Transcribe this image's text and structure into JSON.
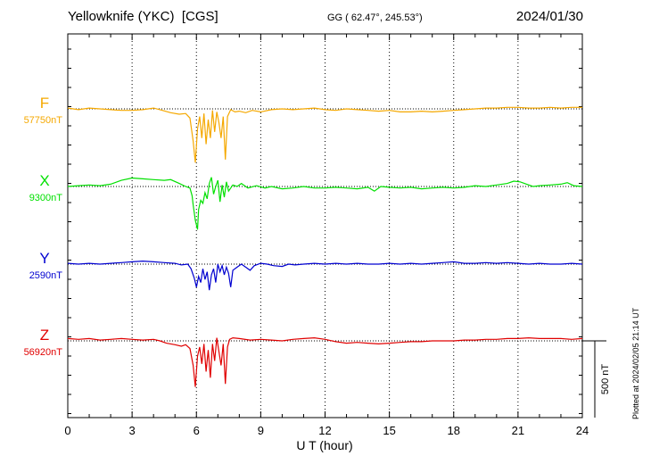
{
  "header": {
    "station": "Yellowknife (YKC)  [CGS]",
    "coords": "GG ( 62.47°, 245.53°)",
    "date": "2024/01/30"
  },
  "side_note": "Plotted at 2024/02/05 21:14 UT",
  "scale_label": "500 nT",
  "colors": {
    "F": "#f5a800",
    "X": "#00e000",
    "Y": "#0000d0",
    "Z": "#e00000"
  },
  "chart_data": {
    "type": "line",
    "xlabel": "U T (hour)",
    "xlim": [
      0,
      24
    ],
    "x_ticks": [
      "0",
      "3",
      "6",
      "9",
      "12",
      "15",
      "18",
      "21",
      "24"
    ],
    "scale_bar_nT": 500,
    "series": [
      {
        "name": "F",
        "baseline_label": "57750nT",
        "baseline": 57750,
        "points": [
          [
            0,
            57755
          ],
          [
            0.5,
            57745
          ],
          [
            1,
            57755
          ],
          [
            1.5,
            57750
          ],
          [
            2,
            57745
          ],
          [
            2.5,
            57740
          ],
          [
            3,
            57740
          ],
          [
            3.5,
            57745
          ],
          [
            4,
            57755
          ],
          [
            4.3,
            57745
          ],
          [
            4.8,
            57725
          ],
          [
            5.2,
            57715
          ],
          [
            5.5,
            57720
          ],
          [
            5.7,
            57690
          ],
          [
            5.85,
            57540
          ],
          [
            5.95,
            57400
          ],
          [
            6.05,
            57620
          ],
          [
            6.15,
            57700
          ],
          [
            6.25,
            57560
          ],
          [
            6.35,
            57720
          ],
          [
            6.45,
            57520
          ],
          [
            6.55,
            57680
          ],
          [
            6.65,
            57560
          ],
          [
            6.75,
            57740
          ],
          [
            6.85,
            57600
          ],
          [
            6.95,
            57730
          ],
          [
            7.05,
            57660
          ],
          [
            7.15,
            57560
          ],
          [
            7.25,
            57700
          ],
          [
            7.35,
            57420
          ],
          [
            7.45,
            57700
          ],
          [
            7.6,
            57745
          ],
          [
            7.8,
            57730
          ],
          [
            8.0,
            57735
          ],
          [
            8.3,
            57725
          ],
          [
            8.6,
            57740
          ],
          [
            9,
            57730
          ],
          [
            9.5,
            57745
          ],
          [
            10,
            57750
          ],
          [
            10.5,
            57745
          ],
          [
            11,
            57750
          ],
          [
            11.5,
            57755
          ],
          [
            12,
            57745
          ],
          [
            12.5,
            57740
          ],
          [
            13,
            57750
          ],
          [
            13.5,
            57745
          ],
          [
            14,
            57740
          ],
          [
            14.5,
            57735
          ],
          [
            15,
            57740
          ],
          [
            15.5,
            57730
          ],
          [
            16,
            57730
          ],
          [
            16.5,
            57735
          ],
          [
            17,
            57730
          ],
          [
            17.5,
            57735
          ],
          [
            18,
            57740
          ],
          [
            18.5,
            57745
          ],
          [
            19,
            57750
          ],
          [
            19.5,
            57755
          ],
          [
            20,
            57755
          ],
          [
            20.5,
            57760
          ],
          [
            21,
            57760
          ],
          [
            21.5,
            57755
          ],
          [
            22,
            57755
          ],
          [
            22.5,
            57760
          ],
          [
            23,
            57755
          ],
          [
            23.5,
            57760
          ],
          [
            24,
            57760
          ]
        ]
      },
      {
        "name": "X",
        "baseline_label": "9300nT",
        "baseline": 9300,
        "points": [
          [
            0,
            9300
          ],
          [
            0.5,
            9305
          ],
          [
            1,
            9310
          ],
          [
            1.5,
            9305
          ],
          [
            2,
            9315
          ],
          [
            2.5,
            9340
          ],
          [
            3,
            9355
          ],
          [
            3.5,
            9350
          ],
          [
            4,
            9345
          ],
          [
            4.5,
            9340
          ],
          [
            4.8,
            9345
          ],
          [
            5.2,
            9320
          ],
          [
            5.5,
            9300
          ],
          [
            5.7,
            9290
          ],
          [
            5.8,
            9240
          ],
          [
            5.85,
            9180
          ],
          [
            5.95,
            9080
          ],
          [
            6.05,
            9020
          ],
          [
            6.1,
            9150
          ],
          [
            6.2,
            9210
          ],
          [
            6.3,
            9190
          ],
          [
            6.4,
            9260
          ],
          [
            6.5,
            9220
          ],
          [
            6.6,
            9320
          ],
          [
            6.7,
            9360
          ],
          [
            6.8,
            9250
          ],
          [
            6.9,
            9300
          ],
          [
            7.0,
            9340
          ],
          [
            7.1,
            9200
          ],
          [
            7.2,
            9310
          ],
          [
            7.3,
            9230
          ],
          [
            7.4,
            9330
          ],
          [
            7.5,
            9270
          ],
          [
            7.7,
            9310
          ],
          [
            7.9,
            9300
          ],
          [
            8.1,
            9320
          ],
          [
            8.4,
            9290
          ],
          [
            8.8,
            9305
          ],
          [
            9.2,
            9290
          ],
          [
            9.5,
            9300
          ],
          [
            10,
            9285
          ],
          [
            10.5,
            9290
          ],
          [
            11,
            9300
          ],
          [
            11.5,
            9290
          ],
          [
            12,
            9290
          ],
          [
            12.5,
            9295
          ],
          [
            13,
            9290
          ],
          [
            13.5,
            9285
          ],
          [
            14,
            9295
          ],
          [
            14.3,
            9270
          ],
          [
            14.6,
            9300
          ],
          [
            15,
            9295
          ],
          [
            15.5,
            9290
          ],
          [
            16,
            9295
          ],
          [
            16.5,
            9285
          ],
          [
            17,
            9290
          ],
          [
            17.5,
            9295
          ],
          [
            18,
            9290
          ],
          [
            18.5,
            9295
          ],
          [
            19,
            9305
          ],
          [
            19.5,
            9300
          ],
          [
            20,
            9310
          ],
          [
            20.5,
            9320
          ],
          [
            20.8,
            9335
          ],
          [
            21.1,
            9330
          ],
          [
            21.4,
            9315
          ],
          [
            21.7,
            9300
          ],
          [
            22,
            9305
          ],
          [
            22.5,
            9310
          ],
          [
            23,
            9315
          ],
          [
            23.3,
            9325
          ],
          [
            23.6,
            9305
          ],
          [
            24,
            9300
          ]
        ]
      },
      {
        "name": "Y",
        "baseline_label": "2590nT",
        "baseline": 2590,
        "points": [
          [
            0,
            2595
          ],
          [
            0.5,
            2590
          ],
          [
            1,
            2595
          ],
          [
            1.5,
            2590
          ],
          [
            2,
            2595
          ],
          [
            2.5,
            2600
          ],
          [
            3,
            2605
          ],
          [
            3.5,
            2610
          ],
          [
            4,
            2605
          ],
          [
            4.5,
            2600
          ],
          [
            5,
            2595
          ],
          [
            5.3,
            2585
          ],
          [
            5.6,
            2590
          ],
          [
            5.75,
            2560
          ],
          [
            5.9,
            2500
          ],
          [
            6.0,
            2440
          ],
          [
            6.1,
            2510
          ],
          [
            6.2,
            2470
          ],
          [
            6.3,
            2560
          ],
          [
            6.4,
            2490
          ],
          [
            6.5,
            2540
          ],
          [
            6.6,
            2420
          ],
          [
            6.7,
            2520
          ],
          [
            6.8,
            2560
          ],
          [
            6.9,
            2470
          ],
          [
            7.0,
            2590
          ],
          [
            7.1,
            2540
          ],
          [
            7.2,
            2580
          ],
          [
            7.3,
            2520
          ],
          [
            7.4,
            2570
          ],
          [
            7.5,
            2530
          ],
          [
            7.6,
            2440
          ],
          [
            7.7,
            2550
          ],
          [
            7.9,
            2570
          ],
          [
            8.1,
            2590
          ],
          [
            8.3,
            2570
          ],
          [
            8.5,
            2550
          ],
          [
            8.7,
            2580
          ],
          [
            9,
            2595
          ],
          [
            9.3,
            2590
          ],
          [
            9.6,
            2580
          ],
          [
            10,
            2575
          ],
          [
            10.3,
            2590
          ],
          [
            10.6,
            2585
          ],
          [
            11,
            2590
          ],
          [
            11.5,
            2595
          ],
          [
            12,
            2590
          ],
          [
            12.5,
            2595
          ],
          [
            13,
            2590
          ],
          [
            13.5,
            2595
          ],
          [
            14,
            2590
          ],
          [
            14.5,
            2590
          ],
          [
            15,
            2595
          ],
          [
            15.5,
            2590
          ],
          [
            16,
            2595
          ],
          [
            16.5,
            2590
          ],
          [
            17,
            2595
          ],
          [
            17.5,
            2600
          ],
          [
            18,
            2605
          ],
          [
            18.5,
            2595
          ],
          [
            19,
            2595
          ],
          [
            19.5,
            2600
          ],
          [
            20,
            2595
          ],
          [
            20.5,
            2600
          ],
          [
            21,
            2595
          ],
          [
            21.5,
            2590
          ],
          [
            22,
            2595
          ],
          [
            22.5,
            2590
          ],
          [
            23,
            2590
          ],
          [
            23.5,
            2595
          ],
          [
            24,
            2590
          ]
        ]
      },
      {
        "name": "Z",
        "baseline_label": "56920nT",
        "baseline": 56920,
        "points": [
          [
            0,
            56935
          ],
          [
            0.5,
            56930
          ],
          [
            1,
            56935
          ],
          [
            1.5,
            56925
          ],
          [
            2,
            56930
          ],
          [
            2.5,
            56935
          ],
          [
            3,
            56930
          ],
          [
            3.5,
            56925
          ],
          [
            4,
            56930
          ],
          [
            4.3,
            56920
          ],
          [
            4.6,
            56905
          ],
          [
            5,
            56895
          ],
          [
            5.3,
            56885
          ],
          [
            5.5,
            56895
          ],
          [
            5.7,
            56870
          ],
          [
            5.85,
            56760
          ],
          [
            5.95,
            56620
          ],
          [
            6.05,
            56820
          ],
          [
            6.15,
            56880
          ],
          [
            6.25,
            56770
          ],
          [
            6.35,
            56900
          ],
          [
            6.45,
            56720
          ],
          [
            6.55,
            56860
          ],
          [
            6.65,
            56680
          ],
          [
            6.75,
            56900
          ],
          [
            6.85,
            56790
          ],
          [
            6.95,
            56940
          ],
          [
            7.05,
            56850
          ],
          [
            7.15,
            56760
          ],
          [
            7.25,
            56900
          ],
          [
            7.35,
            56640
          ],
          [
            7.45,
            56880
          ],
          [
            7.55,
            56930
          ],
          [
            7.7,
            56940
          ],
          [
            8,
            56935
          ],
          [
            8.5,
            56925
          ],
          [
            9,
            56930
          ],
          [
            9.5,
            56925
          ],
          [
            10,
            56920
          ],
          [
            10.5,
            56930
          ],
          [
            11,
            56935
          ],
          [
            11.5,
            56940
          ],
          [
            12,
            56930
          ],
          [
            12.5,
            56915
          ],
          [
            13,
            56905
          ],
          [
            13.5,
            56910
          ],
          [
            14,
            56905
          ],
          [
            14.5,
            56900
          ],
          [
            15,
            56905
          ],
          [
            15.5,
            56910
          ],
          [
            16,
            56915
          ],
          [
            16.5,
            56915
          ],
          [
            17,
            56920
          ],
          [
            17.5,
            56920
          ],
          [
            18,
            56920
          ],
          [
            18.5,
            56925
          ],
          [
            19,
            56925
          ],
          [
            19.5,
            56930
          ],
          [
            20,
            56930
          ],
          [
            20.5,
            56935
          ],
          [
            21,
            56935
          ],
          [
            21.5,
            56940
          ],
          [
            22,
            56935
          ],
          [
            22.5,
            56935
          ],
          [
            23,
            56935
          ],
          [
            23.5,
            56930
          ],
          [
            24,
            56935
          ]
        ]
      }
    ]
  }
}
